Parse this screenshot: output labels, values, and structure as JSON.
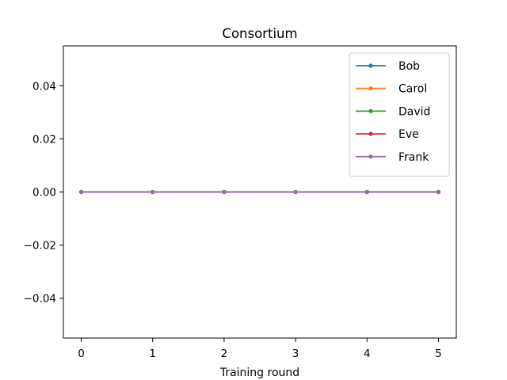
{
  "chart_data": {
    "type": "line",
    "title": "Consortium",
    "xlabel": "Training round",
    "ylabel": "",
    "x": [
      0,
      1,
      2,
      3,
      4,
      5
    ],
    "xlim": [
      -0.25,
      5.25
    ],
    "ylim": [
      -0.055,
      0.055
    ],
    "xticks": [
      0,
      1,
      2,
      3,
      4,
      5
    ],
    "yticks": [
      0.04,
      0.02,
      0.0,
      -0.02,
      -0.04
    ],
    "xtick_labels": [
      "0",
      "1",
      "2",
      "3",
      "4",
      "5"
    ],
    "ytick_labels": [
      "0.04",
      "0.02",
      "0.00",
      "−0.02",
      "−0.04"
    ],
    "grid": false,
    "legend_position": "top-right",
    "series": [
      {
        "name": "Bob",
        "color": "#1f77b4",
        "values": [
          0,
          0,
          0,
          0,
          0,
          0
        ]
      },
      {
        "name": "Carol",
        "color": "#ff7f0e",
        "values": [
          0,
          0,
          0,
          0,
          0,
          0
        ]
      },
      {
        "name": "David",
        "color": "#2ca02c",
        "values": [
          0,
          0,
          0,
          0,
          0,
          0
        ]
      },
      {
        "name": "Eve",
        "color": "#d62728",
        "values": [
          0,
          0,
          0,
          0,
          0,
          0
        ]
      },
      {
        "name": "Frank",
        "color": "#9467bd",
        "values": [
          0,
          0,
          0,
          0,
          0,
          0
        ]
      }
    ]
  }
}
